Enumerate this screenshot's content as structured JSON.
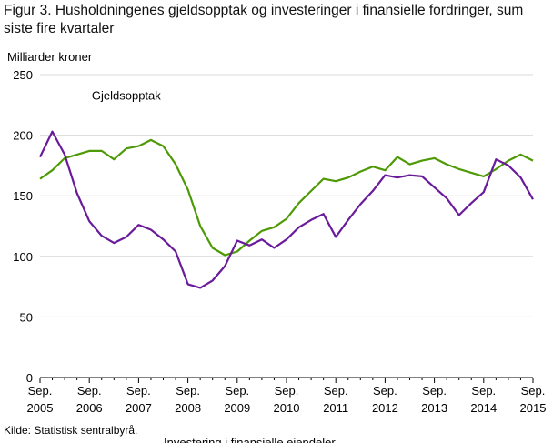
{
  "title": "Figur 3. Husholdningenes gjeldsopptak og investeringer i finansielle fordringer, sum siste fire kvartaler",
  "source": "Kilde: Statistisk sentralbyrå.",
  "chart_data": {
    "type": "line",
    "ylabel": "Milliarder  kroner",
    "ylim": [
      0,
      250
    ],
    "yticks": [
      0,
      50,
      100,
      150,
      200,
      250
    ],
    "grid": "horizontal",
    "xtick_labels": [
      {
        "top": "Sep.",
        "bottom": "2005"
      },
      {
        "top": "Sep.",
        "bottom": "2006"
      },
      {
        "top": "Sep.",
        "bottom": "2007"
      },
      {
        "top": "Sep.",
        "bottom": "2008"
      },
      {
        "top": "Sep.",
        "bottom": "2009"
      },
      {
        "top": "Sep.",
        "bottom": "2010"
      },
      {
        "top": "Sep.",
        "bottom": "2011"
      },
      {
        "top": "Sep.",
        "bottom": "2012"
      },
      {
        "top": "Sep.",
        "bottom": "2013"
      },
      {
        "top": "Sep.",
        "bottom": "2014"
      },
      {
        "top": "Sep.",
        "bottom": "2015"
      }
    ],
    "x": [
      "2005Q3",
      "2005Q4",
      "2006Q1",
      "2006Q2",
      "2006Q3",
      "2006Q4",
      "2007Q1",
      "2007Q2",
      "2007Q3",
      "2007Q4",
      "2008Q1",
      "2008Q2",
      "2008Q3",
      "2008Q4",
      "2009Q1",
      "2009Q2",
      "2009Q3",
      "2009Q4",
      "2010Q1",
      "2010Q2",
      "2010Q3",
      "2010Q4",
      "2011Q1",
      "2011Q2",
      "2011Q3",
      "2011Q4",
      "2012Q1",
      "2012Q2",
      "2012Q3",
      "2012Q4",
      "2013Q1",
      "2013Q2",
      "2013Q3",
      "2013Q4",
      "2014Q1",
      "2014Q2",
      "2014Q3",
      "2014Q4",
      "2015Q1",
      "2015Q2",
      "2015Q3"
    ],
    "series": [
      {
        "name": "Gjeldsopptak",
        "color": "#4e9a06",
        "label_near": "2007Q2",
        "values": [
          164,
          171,
          181,
          184,
          187,
          187,
          180,
          189,
          191,
          196,
          191,
          176,
          155,
          125,
          107,
          101,
          104,
          113,
          121,
          124,
          131,
          144,
          154,
          164,
          162,
          165,
          170,
          174,
          171,
          182,
          176,
          179,
          181,
          176,
          172,
          169,
          166,
          172,
          179,
          184,
          179
        ]
      },
      {
        "name": "Investering  i finansielle  eiendeler",
        "color": "#6a1b9a",
        "label_near": "2009Q4",
        "values": [
          182,
          203,
          184,
          152,
          129,
          117,
          111,
          116,
          126,
          122,
          114,
          104,
          77,
          74,
          80,
          92,
          113,
          109,
          114,
          107,
          114,
          124,
          130,
          135,
          116,
          130,
          143,
          154,
          167,
          165,
          167,
          166,
          157,
          148,
          134,
          144,
          153,
          180,
          175,
          165,
          147
        ]
      }
    ]
  }
}
